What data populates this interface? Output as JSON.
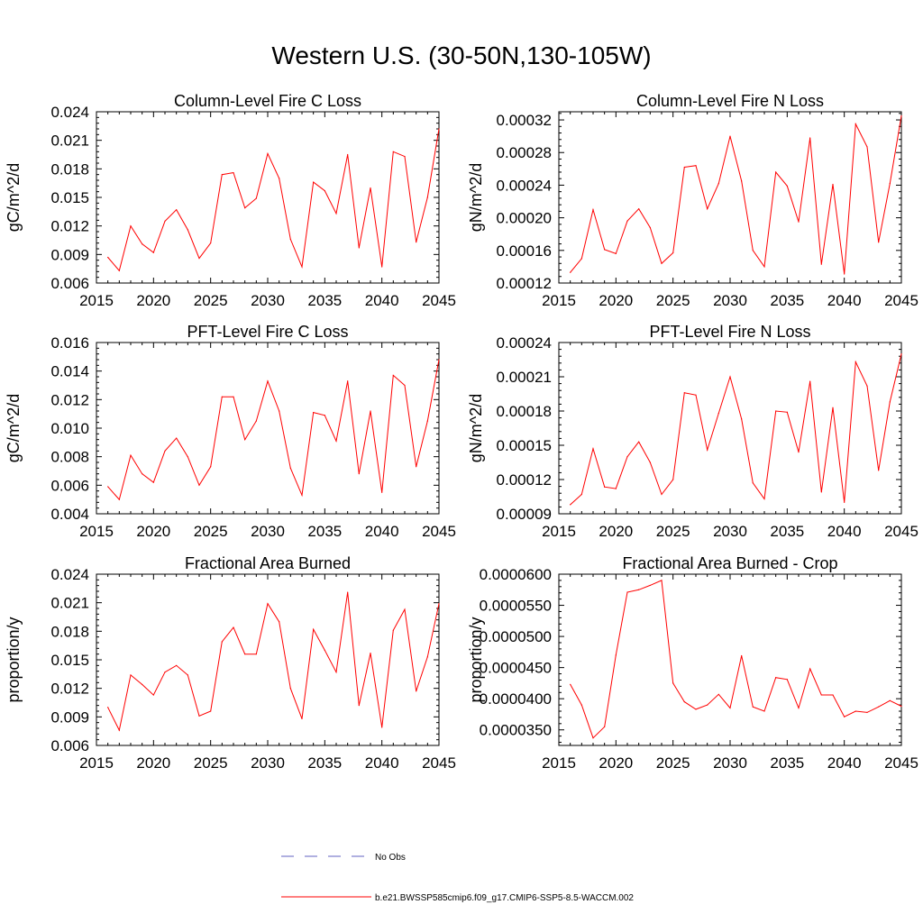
{
  "title": "Western U.S. (30-50N,130-105W)",
  "colors": {
    "series": "#ff0000",
    "obs": "#6060c0",
    "axis": "#000000"
  },
  "legend": {
    "obs_label": "No Obs",
    "model_label": "b.e21.BWSSP585cmip6.f09_g17.CMIP6-SSP5-8.5-WACCM.002"
  },
  "chart_data": [
    {
      "type": "line",
      "title": "Column-Level Fire C Loss",
      "ylabel": "gC/m^2/d",
      "xlim": [
        2015,
        2045
      ],
      "xticks": [
        2015,
        2020,
        2025,
        2030,
        2035,
        2040,
        2045
      ],
      "ylim": [
        0.006,
        0.024
      ],
      "yticks": [
        "0.006",
        "0.009",
        "0.012",
        "0.015",
        "0.018",
        "0.021",
        "0.024"
      ],
      "x": [
        2016,
        2017,
        2018,
        2019,
        2020,
        2021,
        2022,
        2023,
        2024,
        2025,
        2026,
        2027,
        2028,
        2029,
        2030,
        2031,
        2032,
        2033,
        2034,
        2035,
        2036,
        2037,
        2038,
        2039,
        2040,
        2041,
        2042,
        2043,
        2044,
        2045
      ],
      "values": [
        0.0087,
        0.0073,
        0.012,
        0.0101,
        0.0092,
        0.0125,
        0.0137,
        0.0116,
        0.0086,
        0.0102,
        0.0174,
        0.0176,
        0.0139,
        0.0149,
        0.0196,
        0.017,
        0.0106,
        0.0077,
        0.0166,
        0.0157,
        0.0133,
        0.0195,
        0.0097,
        0.016,
        0.0077,
        0.0198,
        0.0193,
        0.0103,
        0.015,
        0.0222
      ]
    },
    {
      "type": "line",
      "title": "Column-Level Fire N Loss",
      "ylabel": "gN/m^2/d",
      "xlim": [
        2015,
        2045
      ],
      "xticks": [
        2015,
        2020,
        2025,
        2030,
        2035,
        2040,
        2045
      ],
      "ylim": [
        0.00012,
        0.00033
      ],
      "yticks": [
        "0.00012",
        "0.00016",
        "0.00020",
        "0.00024",
        "0.00028",
        "0.00032"
      ],
      "x": [
        2016,
        2017,
        2018,
        2019,
        2020,
        2021,
        2022,
        2023,
        2024,
        2025,
        2026,
        2027,
        2028,
        2029,
        2030,
        2031,
        2032,
        2033,
        2034,
        2035,
        2036,
        2037,
        2038,
        2039,
        2040,
        2041,
        2042,
        2043,
        2044,
        2045
      ],
      "values": [
        0.000133,
        0.00015,
        0.00021,
        0.000161,
        0.000156,
        0.000196,
        0.000211,
        0.000188,
        0.000144,
        0.000157,
        0.000262,
        0.000264,
        0.000211,
        0.000242,
        0.0003,
        0.000245,
        0.00016,
        0.00014,
        0.000256,
        0.000239,
        0.000195,
        0.000298,
        0.000143,
        0.000241,
        0.000131,
        0.000315,
        0.000287,
        0.00017,
        0.000242,
        0.000325
      ]
    },
    {
      "type": "line",
      "title": "PFT-Level Fire C Loss",
      "ylabel": "gC/m^2/d",
      "xlim": [
        2015,
        2045
      ],
      "xticks": [
        2015,
        2020,
        2025,
        2030,
        2035,
        2040,
        2045
      ],
      "ylim": [
        0.004,
        0.016
      ],
      "yticks": [
        "0.004",
        "0.006",
        "0.008",
        "0.010",
        "0.012",
        "0.014",
        "0.016"
      ],
      "x": [
        2016,
        2017,
        2018,
        2019,
        2020,
        2021,
        2022,
        2023,
        2024,
        2025,
        2026,
        2027,
        2028,
        2029,
        2030,
        2031,
        2032,
        2033,
        2034,
        2035,
        2036,
        2037,
        2038,
        2039,
        2040,
        2041,
        2042,
        2043,
        2044,
        2045
      ],
      "values": [
        0.0059,
        0.005,
        0.0081,
        0.0068,
        0.0062,
        0.0084,
        0.0093,
        0.008,
        0.006,
        0.0073,
        0.0122,
        0.0122,
        0.0092,
        0.0105,
        0.0133,
        0.0112,
        0.0072,
        0.0053,
        0.0111,
        0.0109,
        0.0091,
        0.0133,
        0.0068,
        0.0112,
        0.0055,
        0.0137,
        0.013,
        0.0073,
        0.0105,
        0.0148
      ]
    },
    {
      "type": "line",
      "title": "PFT-Level Fire N Loss",
      "ylabel": "gN/m^2/d",
      "xlim": [
        2015,
        2045
      ],
      "xticks": [
        2015,
        2020,
        2025,
        2030,
        2035,
        2040,
        2045
      ],
      "ylim": [
        9e-05,
        0.00024
      ],
      "yticks": [
        "0.00009",
        "0.00012",
        "0.00015",
        "0.00018",
        "0.00021",
        "0.00024"
      ],
      "x": [
        2016,
        2017,
        2018,
        2019,
        2020,
        2021,
        2022,
        2023,
        2024,
        2025,
        2026,
        2027,
        2028,
        2029,
        2030,
        2031,
        2032,
        2033,
        2034,
        2035,
        2036,
        2037,
        2038,
        2039,
        2040,
        2041,
        2042,
        2043,
        2044,
        2045
      ],
      "values": [
        9.8e-05,
        0.000107,
        0.000147,
        0.0001135,
        0.000112,
        0.00014,
        0.000153,
        0.000135,
        0.000107,
        0.00012,
        0.000196,
        0.000194,
        0.000146,
        0.000178,
        0.00021,
        0.000173,
        0.000117,
        0.000103,
        0.00018,
        0.000179,
        0.000144,
        0.000206,
        0.000109,
        0.000183,
        0.0001,
        0.000223,
        0.000202,
        0.000128,
        0.000188,
        0.00023
      ]
    },
    {
      "type": "line",
      "title": "Fractional Area Burned",
      "ylabel": "proportion/y",
      "xlim": [
        2015,
        2045
      ],
      "xticks": [
        2015,
        2020,
        2025,
        2030,
        2035,
        2040,
        2045
      ],
      "ylim": [
        0.006,
        0.024
      ],
      "yticks": [
        "0.006",
        "0.009",
        "0.012",
        "0.015",
        "0.018",
        "0.021",
        "0.024"
      ],
      "x": [
        2016,
        2017,
        2018,
        2019,
        2020,
        2021,
        2022,
        2023,
        2024,
        2025,
        2026,
        2027,
        2028,
        2029,
        2030,
        2031,
        2032,
        2033,
        2034,
        2035,
        2036,
        2037,
        2038,
        2039,
        2040,
        2041,
        2042,
        2043,
        2044,
        2045
      ],
      "values": [
        0.01,
        0.0076,
        0.0134,
        0.0124,
        0.0113,
        0.0137,
        0.0144,
        0.0134,
        0.0091,
        0.0096,
        0.0169,
        0.0184,
        0.0156,
        0.0156,
        0.0209,
        0.019,
        0.012,
        0.0088,
        0.0182,
        0.016,
        0.0137,
        0.0221,
        0.0102,
        0.0157,
        0.0079,
        0.0181,
        0.0203,
        0.0117,
        0.0153,
        0.0209
      ]
    },
    {
      "type": "line",
      "title": "Fractional Area Burned - Crop",
      "ylabel": "proportion/y",
      "xlim": [
        2015,
        2045
      ],
      "xticks": [
        2015,
        2020,
        2025,
        2030,
        2035,
        2040,
        2045
      ],
      "ylim": [
        3.25e-05,
        6e-05
      ],
      "yticks": [
        "0.0000350",
        "0.0000400",
        "0.0000450",
        "0.0000500",
        "0.0000550",
        "0.0000600"
      ],
      "x": [
        2016,
        2017,
        2018,
        2019,
        2020,
        2021,
        2022,
        2023,
        2024,
        2025,
        2026,
        2027,
        2028,
        2029,
        2030,
        2031,
        2032,
        2033,
        2034,
        2035,
        2036,
        2037,
        2038,
        2039,
        2040,
        2041,
        2042,
        2043,
        2044,
        2045
      ],
      "values": [
        4.23e-05,
        3.9e-05,
        3.37e-05,
        3.55e-05,
        4.7e-05,
        5.71e-05,
        5.75e-05,
        5.82e-05,
        5.9e-05,
        4.25e-05,
        3.95e-05,
        3.83e-05,
        3.9e-05,
        4.07e-05,
        3.85e-05,
        4.69e-05,
        3.87e-05,
        3.8e-05,
        4.34e-05,
        4.31e-05,
        3.85e-05,
        4.48e-05,
        4.06e-05,
        4.06e-05,
        3.71e-05,
        3.8e-05,
        3.78e-05,
        3.87e-05,
        3.97e-05,
        3.88e-05
      ]
    }
  ]
}
